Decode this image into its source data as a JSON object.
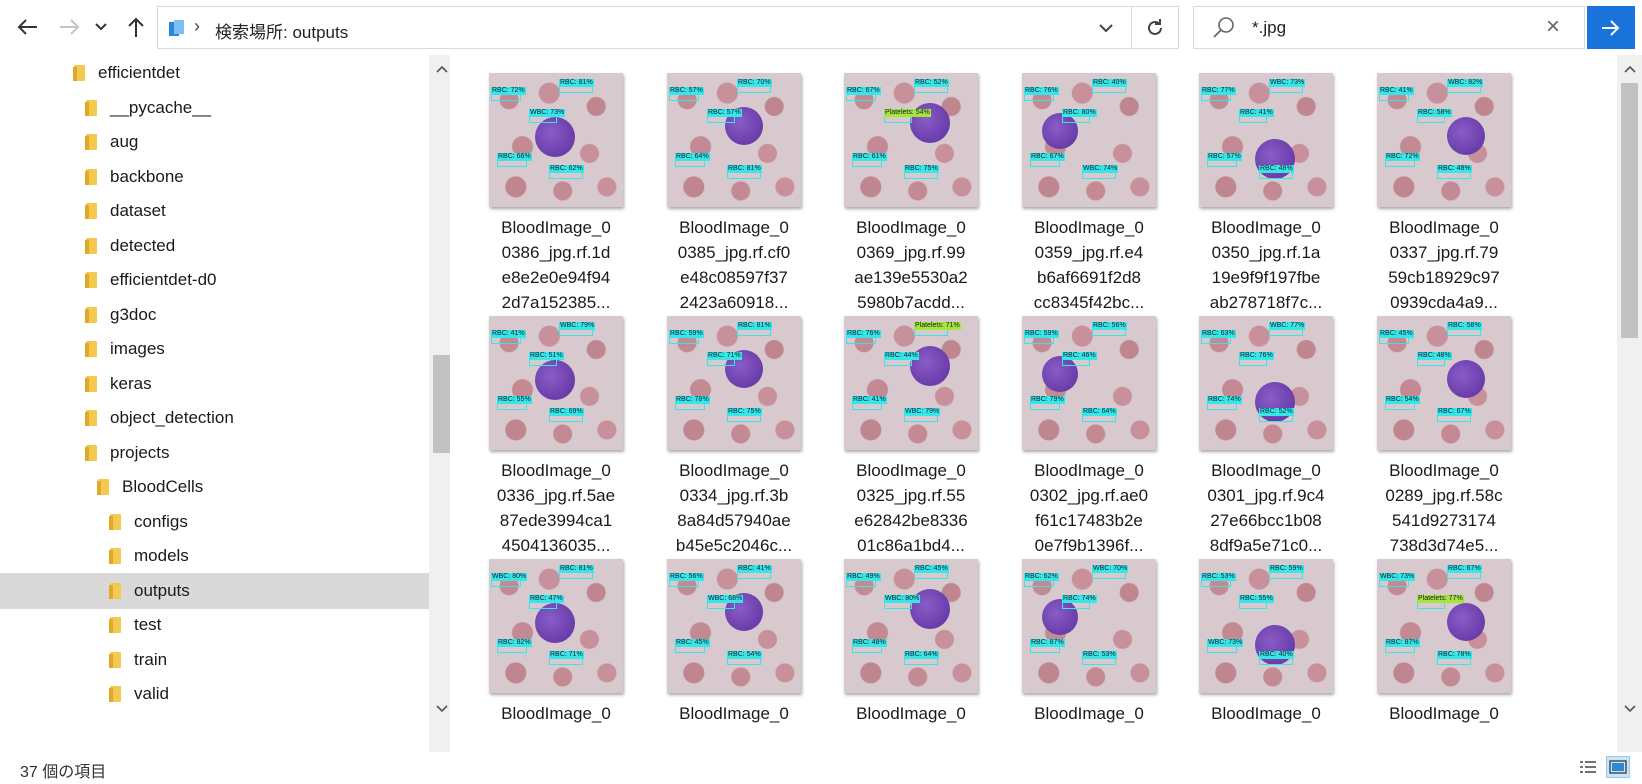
{
  "nav": {
    "back_icon": "arrow-left-icon",
    "forward_icon": "arrow-right-icon",
    "recent_icon": "chevron-down-icon",
    "up_icon": "arrow-up-icon"
  },
  "address": {
    "path": "検索場所: outputs"
  },
  "search": {
    "query": "*.jpg"
  },
  "tree": {
    "items": [
      {
        "label": "efficientdet",
        "indent": 0,
        "selected": false
      },
      {
        "label": "__pycache__",
        "indent": 1,
        "selected": false
      },
      {
        "label": "aug",
        "indent": 1,
        "selected": false
      },
      {
        "label": "backbone",
        "indent": 1,
        "selected": false
      },
      {
        "label": "dataset",
        "indent": 1,
        "selected": false
      },
      {
        "label": "detected",
        "indent": 1,
        "selected": false
      },
      {
        "label": "efficientdet-d0",
        "indent": 1,
        "selected": false
      },
      {
        "label": "g3doc",
        "indent": 1,
        "selected": false
      },
      {
        "label": "images",
        "indent": 1,
        "selected": false
      },
      {
        "label": "keras",
        "indent": 1,
        "selected": false
      },
      {
        "label": "object_detection",
        "indent": 1,
        "selected": false
      },
      {
        "label": "projects",
        "indent": 1,
        "selected": false
      },
      {
        "label": "BloodCells",
        "indent": 2,
        "selected": false
      },
      {
        "label": "configs",
        "indent": 3,
        "selected": false
      },
      {
        "label": "models",
        "indent": 3,
        "selected": false
      },
      {
        "label": "outputs",
        "indent": 3,
        "selected": true
      },
      {
        "label": "test",
        "indent": 3,
        "selected": false
      },
      {
        "label": "train",
        "indent": 3,
        "selected": false
      },
      {
        "label": "valid",
        "indent": 3,
        "selected": false
      }
    ]
  },
  "files": [
    {
      "lines": [
        "BloodImage_0",
        "0386_jpg.rf.1d",
        "e8e2e0e94f94",
        "2d7a152385..."
      ]
    },
    {
      "lines": [
        "BloodImage_0",
        "0385_jpg.rf.cf0",
        "e48c08597f37",
        "2423a60918..."
      ]
    },
    {
      "lines": [
        "BloodImage_0",
        "0369_jpg.rf.99",
        "ae139e5530a2",
        "5980b7acdd..."
      ]
    },
    {
      "lines": [
        "BloodImage_0",
        "0359_jpg.rf.e4",
        "b6af6691f2d8",
        "cc8345f42bc..."
      ]
    },
    {
      "lines": [
        "BloodImage_0",
        "0350_jpg.rf.1a",
        "19e9f9f197fbe",
        "ab278718f7c..."
      ]
    },
    {
      "lines": [
        "BloodImage_0",
        "0337_jpg.rf.79",
        "59cb18929c97",
        "0939cda4a9..."
      ]
    },
    {
      "lines": [
        "BloodImage_0",
        "0336_jpg.rf.5ae",
        "87ede3994ca1",
        "4504136035..."
      ]
    },
    {
      "lines": [
        "BloodImage_0",
        "0334_jpg.rf.3b",
        "8a84d57940ae",
        "b45e5c2046c..."
      ]
    },
    {
      "lines": [
        "BloodImage_0",
        "0325_jpg.rf.55",
        "e62842be8336",
        "01c86a1bd4..."
      ]
    },
    {
      "lines": [
        "BloodImage_0",
        "0302_jpg.rf.ae0",
        "f61c17483b2e",
        "0e7f9b1396f..."
      ]
    },
    {
      "lines": [
        "BloodImage_0",
        "0301_jpg.rf.9c4",
        "27e66bcc1b08",
        "8df9a5e71c0..."
      ]
    },
    {
      "lines": [
        "BloodImage_0",
        "0289_jpg.rf.58c",
        "541d9273174",
        "738d3d74e5..."
      ]
    },
    {
      "lines": [
        "BloodImage_0"
      ]
    },
    {
      "lines": [
        "BloodImage_0"
      ]
    },
    {
      "lines": [
        "BloodImage_0"
      ]
    },
    {
      "lines": [
        "BloodImage_0"
      ]
    },
    {
      "lines": [
        "BloodImage_0"
      ]
    },
    {
      "lines": [
        "BloodImage_0"
      ]
    }
  ],
  "thumb_labels": [
    [
      "RBC: 72%",
      "WBC: 73%",
      "RBC: 81%",
      "RBC: 66%",
      "RBC: 62%"
    ],
    [
      "RBC: 57%",
      "RBC: 70%",
      "RBC: 64%",
      "RBC: 81%",
      "RBC: 57%"
    ],
    [
      "RBC: 52%",
      "RBC: 61%",
      "RBC: 75%",
      "RBC: 67%",
      "Platelets: 54%"
    ],
    [
      "RBC: 67%",
      "WBC: 74%",
      "RBC: 76%",
      "RBC: 80%",
      "RBC: 40%"
    ],
    [
      "RBC: 48%",
      "RBC: 77%",
      "RBC: 41%",
      "WBC: 73%",
      "RBC: 57%"
    ],
    [
      "RBC: 41%",
      "RBC: 58%",
      "WBC: 82%",
      "RBC: 72%",
      "RBC: 48%"
    ],
    [
      "RBC: 51%",
      "WBC: 79%",
      "RBC: 55%",
      "RBC: 69%",
      "RBC: 41%"
    ],
    [
      "RBC: 81%",
      "RBC: 78%",
      "RBC: 75%",
      "RBC: 59%",
      "RBC: 71%"
    ],
    [
      "RBC: 41%",
      "WBC: 79%",
      "RBC: 76%",
      "RBC: 44%",
      "Platelets: 71%"
    ],
    [
      "RBC: 64%",
      "RBC: 59%",
      "RBC: 46%",
      "RBC: 56%",
      "RBC: 79%"
    ],
    [
      "RBC: 63%",
      "RBC: 76%",
      "WBC: 77%",
      "RBC: 74%",
      "RBC: 52%"
    ],
    [
      "RBC: 48%",
      "RBC: 58%",
      "RBC: 54%",
      "RBC: 67%",
      "RBC: 45%"
    ],
    [
      "RBC: 81%",
      "RBC: 82%",
      "RBC: 71%",
      "WBC: 80%",
      "RBC: 47%"
    ],
    [
      "RBC: 45%",
      "RBC: 54%",
      "RBC: 56%",
      "WBC: 68%",
      "RBC: 41%"
    ],
    [
      "RBC: 64%",
      "RBC: 49%",
      "WBC: 80%",
      "RBC: 45%",
      "RBC: 48%"
    ],
    [
      "RBC: 62%",
      "RBC: 74%",
      "WBC: 70%",
      "RBC: 87%",
      "RBC: 53%"
    ],
    [
      "RBC: 55%",
      "RBC: 59%",
      "WBC: 73%",
      "RBC: 40%",
      "RBC: 53%"
    ],
    [
      "RBC: 67%",
      "RBC: 87%",
      "RBC: 78%",
      "WBC: 73%",
      "Platelets: 77%"
    ]
  ],
  "status": {
    "count": "37 個の項目"
  },
  "colors": {
    "accent": "#1a73d9",
    "selection": "#d9d9d9",
    "detection_box": "#37e6e6",
    "platelet_box": "#a6e63a",
    "folder": "#f3c94f"
  }
}
